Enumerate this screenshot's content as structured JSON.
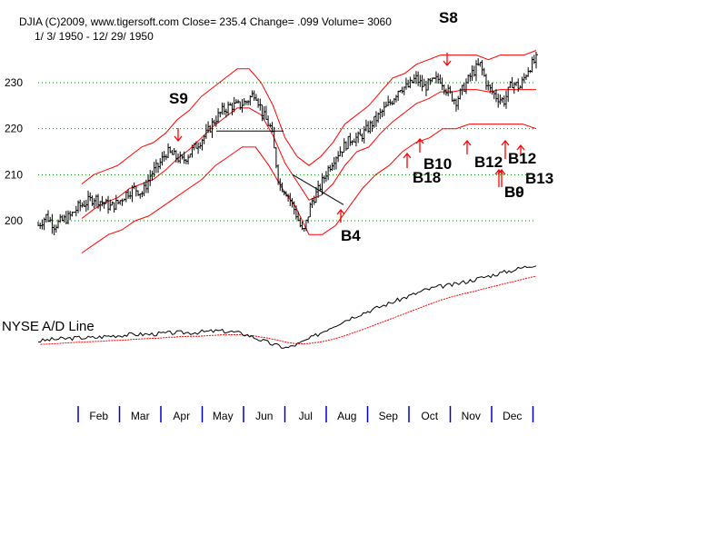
{
  "header": {
    "line1": "DJIA     (C)2009, www.tigersoft.com     Close=  235.4   Change= .099  Volume= 3060",
    "line2": "1/ 3/ 1950 - 12/ 29/ 1950"
  },
  "ad_label": "NYSE A/D Line",
  "chart_data": {
    "type": "line",
    "y_ticks": [
      200,
      210,
      220,
      230
    ],
    "ylim": [
      192,
      240
    ],
    "grid": "dotted-green",
    "months": [
      "Feb",
      "Mar",
      "Apr",
      "May",
      "Jun",
      "Jul",
      "Aug",
      "Sep",
      "Oct",
      "Nov",
      "Dec"
    ],
    "series": [
      {
        "values": [
          199,
          201,
          199,
          200,
          201,
          203,
          204,
          205,
          204,
          203,
          204,
          206,
          207,
          206,
          210,
          212,
          215,
          214,
          213,
          215,
          217,
          219,
          222,
          224,
          225,
          225,
          226,
          228,
          223,
          220,
          208,
          206,
          202,
          197,
          204,
          207,
          211,
          214,
          216,
          218,
          218,
          220,
          222,
          224,
          226,
          229,
          229,
          231,
          229,
          230,
          231,
          228,
          226,
          229,
          232,
          234,
          229,
          227,
          226,
          230,
          229,
          233,
          235
        ]
      },
      {
        "values": [
          208,
          210,
          211,
          212,
          214,
          216,
          217,
          219,
          222,
          224,
          227,
          229,
          231,
          233,
          233,
          230,
          225,
          218,
          214,
          212,
          214,
          217,
          221,
          223,
          225,
          228,
          231,
          232,
          234,
          235,
          236,
          236,
          236,
          236,
          235,
          236,
          236,
          236,
          237
        ]
      },
      {
        "values": [
          193,
          195,
          197,
          198,
          200,
          201,
          203,
          205,
          207,
          209,
          212,
          214,
          216,
          216,
          212,
          207,
          203,
          197,
          197,
          199,
          203,
          207,
          210,
          212,
          215,
          217,
          218,
          220,
          220,
          221,
          221,
          221,
          221,
          221,
          220
        ]
      }
    ],
    "annotations": [
      {
        "label": "S9",
        "kind": "sell"
      },
      {
        "label": "S8",
        "kind": "sell"
      },
      {
        "label": "B4",
        "kind": "buy"
      },
      {
        "label": "B18",
        "kind": "buy"
      },
      {
        "label": "B10",
        "kind": "buy"
      },
      {
        "label": "B12",
        "kind": "buy"
      },
      {
        "label": "B12",
        "kind": "buy"
      },
      {
        "label": "B13",
        "kind": "buy"
      },
      {
        "label": "B9",
        "kind": "buy"
      },
      {
        "label": "B0",
        "kind": "buy"
      }
    ]
  },
  "colors": {
    "price": "#000000",
    "bands": "#ff0000",
    "grid": "#008000",
    "axis": "#0000cc",
    "ad_line": "#000000",
    "ad_ma": "#ff0000"
  }
}
